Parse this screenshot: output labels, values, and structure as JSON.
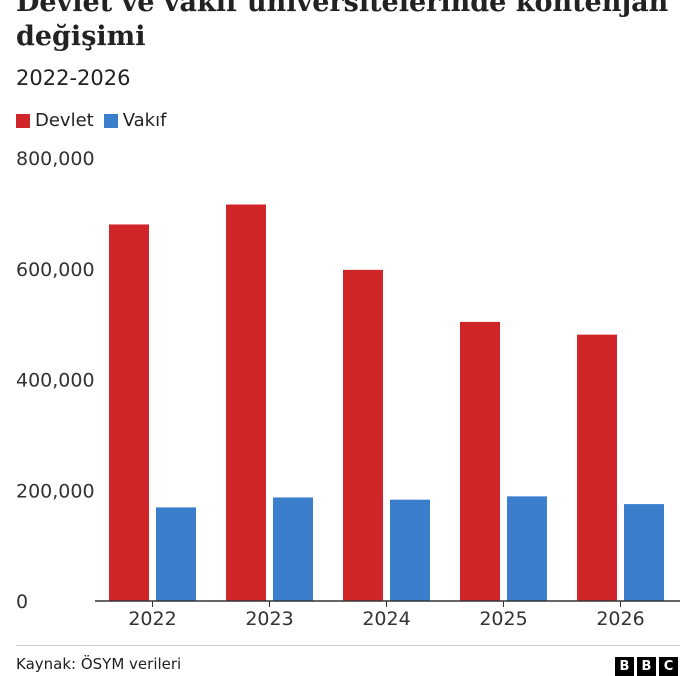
{
  "chart_data": {
    "type": "bar",
    "title": "Devlet ve vakıf üniversitelerinde kontenjan değişimi",
    "subtitle": "2022-2026",
    "categories": [
      "2022",
      "2023",
      "2024",
      "2025",
      "2026"
    ],
    "series": [
      {
        "name": "Devlet",
        "color": "#d0262a",
        "values": [
          680000,
          716000,
          598000,
          504000,
          481000
        ]
      },
      {
        "name": "Vakıf",
        "color": "#3b7fcc",
        "values": [
          169000,
          187000,
          183000,
          189000,
          175000
        ]
      }
    ],
    "ylim": [
      0,
      800000
    ],
    "yticks": [
      "0",
      "200,000",
      "400,000",
      "600,000",
      "800,000"
    ],
    "grid": false,
    "legend": "top-left"
  },
  "footer": {
    "source": "Kaynak: ÖSYM verileri",
    "logo": [
      "B",
      "B",
      "C"
    ]
  }
}
